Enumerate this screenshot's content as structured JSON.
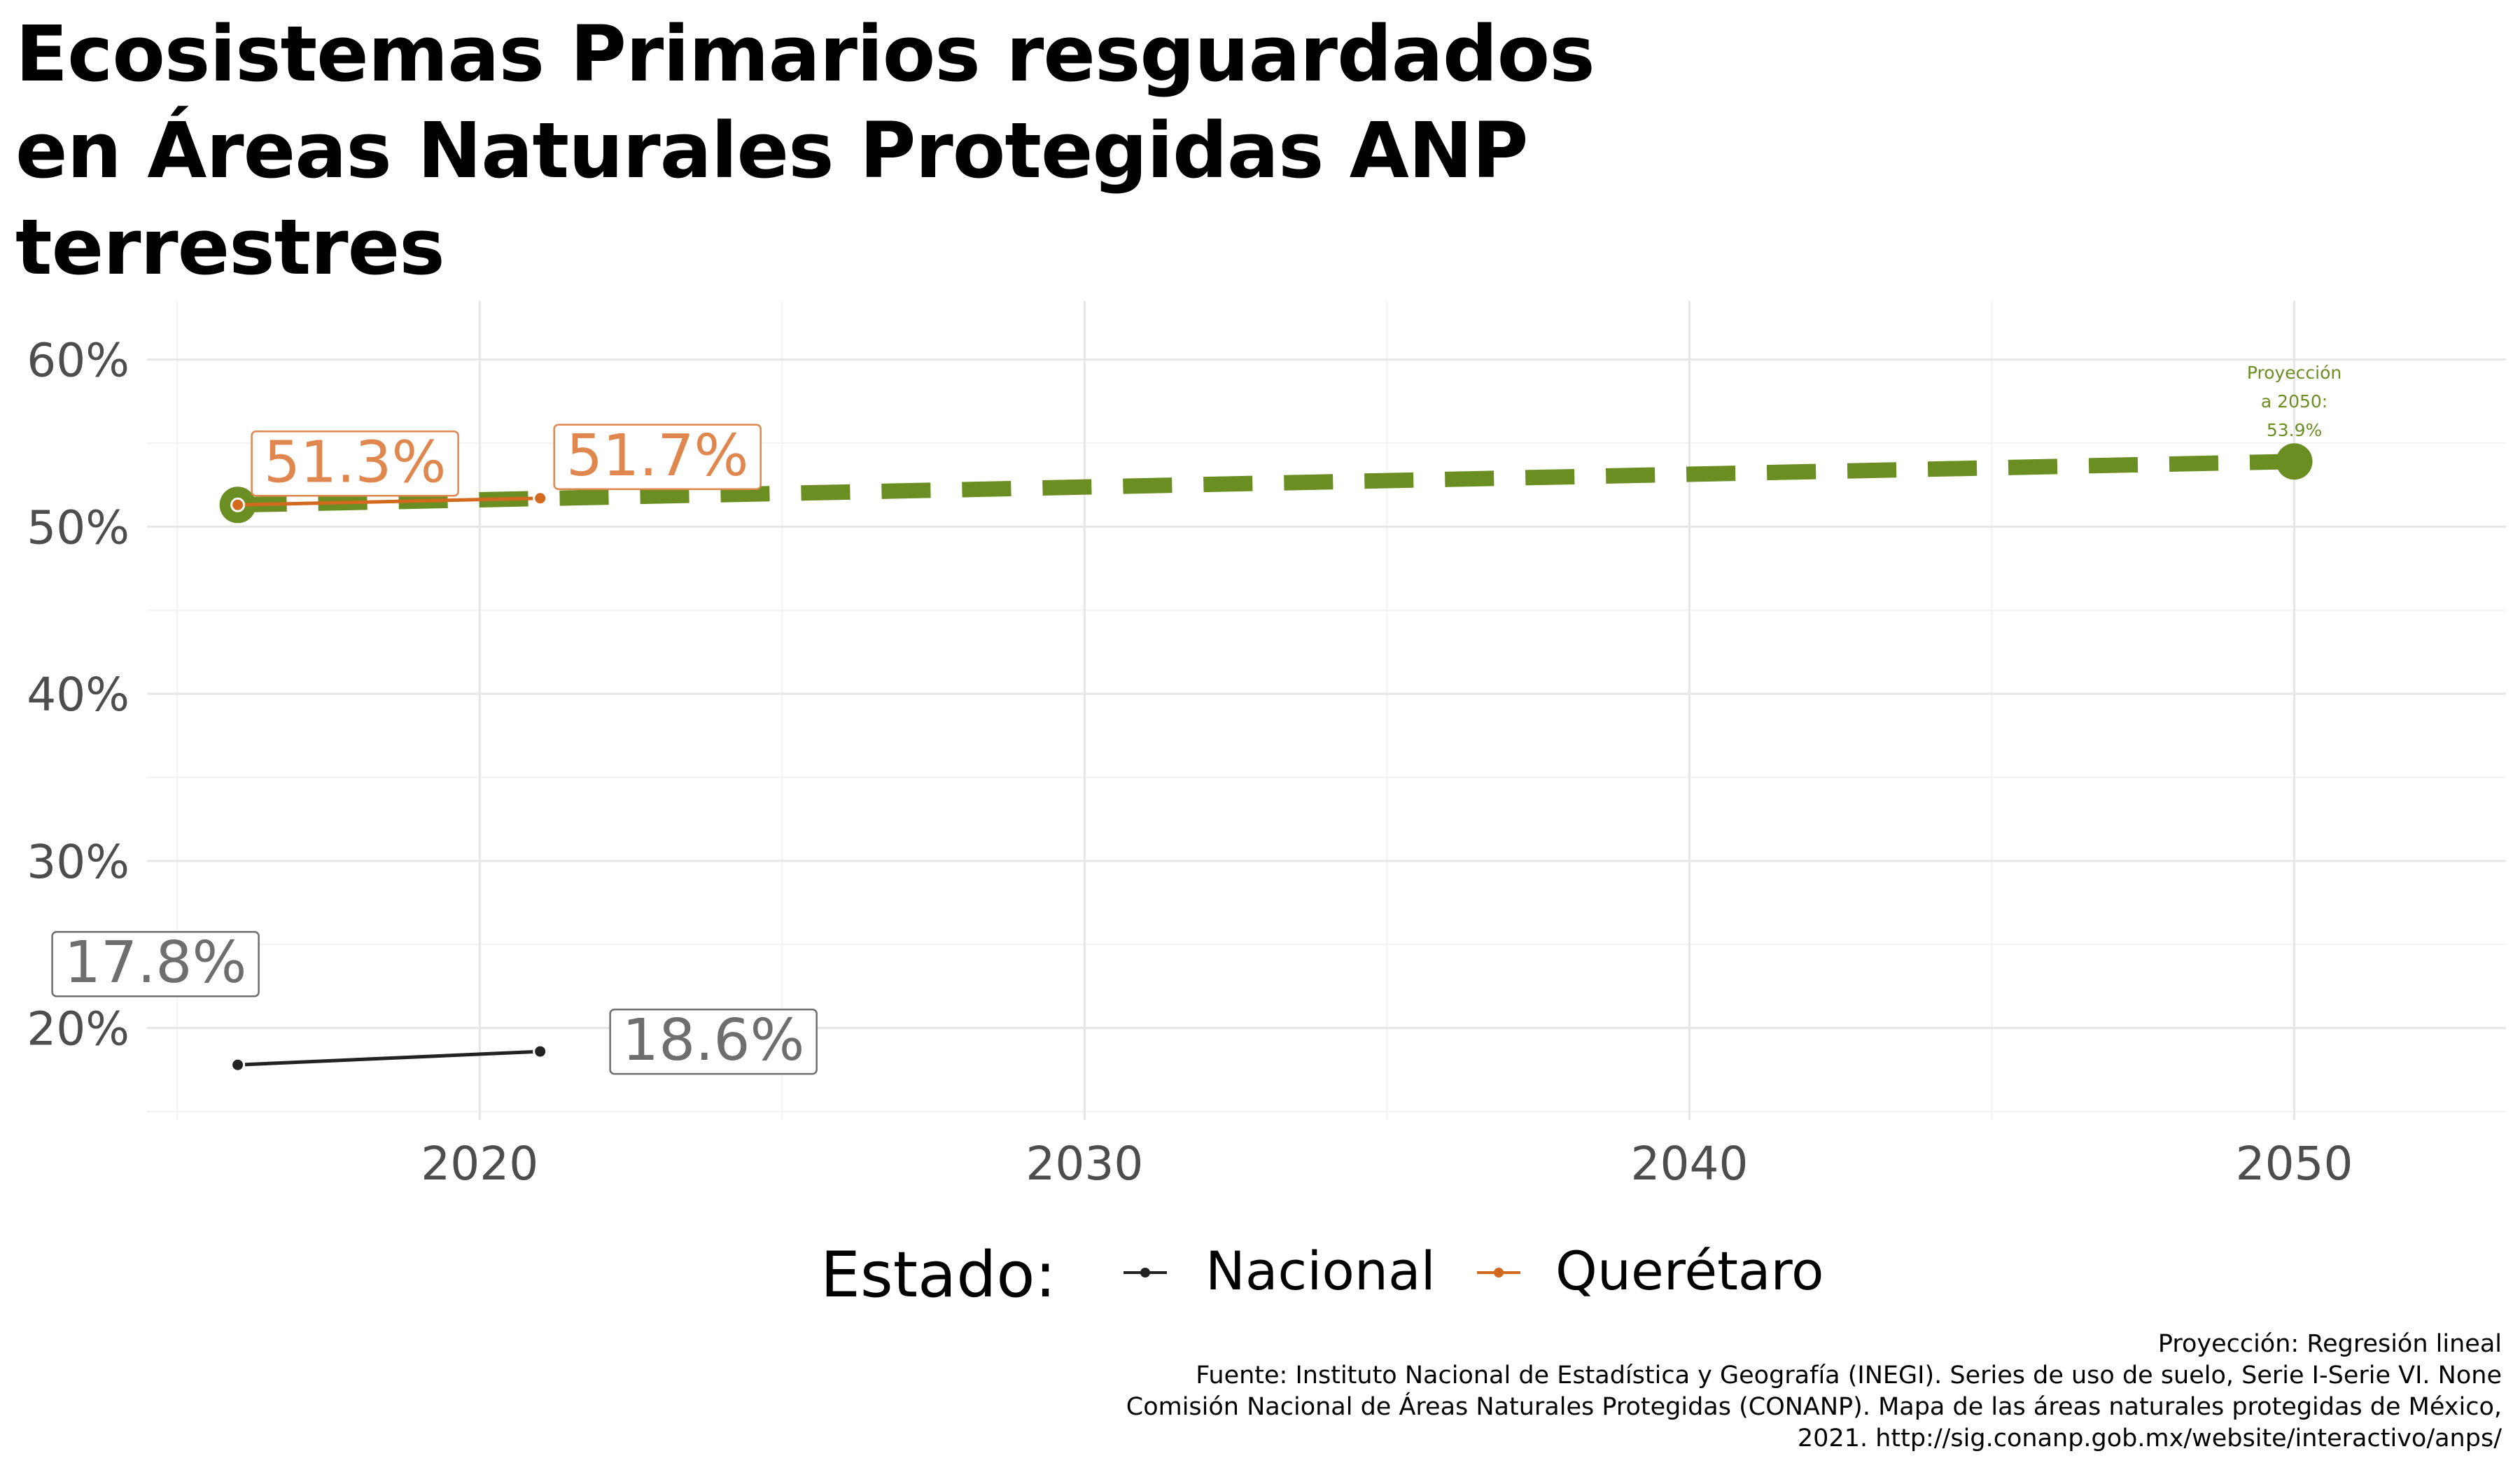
{
  "chart_data": {
    "type": "line",
    "title": "Ecosistemas Primarios resguardados en Áreas Naturales Protegidas ANP terrestres",
    "title_lines": [
      "Ecosistemas Primarios resguardados",
      "en Áreas Naturales Protegidas ANP",
      "terrestres"
    ],
    "xlim": [
      2014.5,
      2053.5
    ],
    "ylim": [
      14.5,
      63.5
    ],
    "x_ticks": [
      2020,
      2030,
      2040,
      2050
    ],
    "y_ticks": [
      {
        "value": 20,
        "label": "20%"
      },
      {
        "value": 30,
        "label": "30%"
      },
      {
        "value": 40,
        "label": "40%"
      },
      {
        "value": 50,
        "label": "50%"
      },
      {
        "value": 60,
        "label": "60%"
      }
    ],
    "grid": true,
    "series": [
      {
        "name": "Nacional",
        "color": "#222222",
        "points": [
          {
            "x": 2016,
            "y": 17.8,
            "label": "17.8%"
          },
          {
            "x": 2021,
            "y": 18.6,
            "label": "18.6%"
          }
        ]
      },
      {
        "name": "Querétaro",
        "color": "#d2691e",
        "points": [
          {
            "x": 2016,
            "y": 51.3,
            "label": "51.3%"
          },
          {
            "x": 2021,
            "y": 51.7,
            "label": "51.7%"
          }
        ]
      }
    ],
    "projection": {
      "color": "#6b8e23",
      "points": [
        {
          "x": 2016,
          "y": 51.3
        },
        {
          "x": 2050,
          "y": 53.9
        }
      ],
      "note_lines": [
        "Proyección",
        "a 2050:",
        "53.9%"
      ]
    },
    "legend": {
      "title": "Estado:",
      "position": "bottom"
    }
  },
  "caption_lines": [
    "Proyección: Regresión lineal",
    "Fuente: Instituto Nacional de Estadística y Geografía (INEGI). Series de uso de suelo, Serie I-Serie VI. None",
    "Comisión Nacional de Áreas Naturales Protegidas (CONANP). Mapa de las áreas naturales protegidas de México,",
    "2021. http://sig.conanp.gob.mx/website/interactivo/anps/"
  ]
}
